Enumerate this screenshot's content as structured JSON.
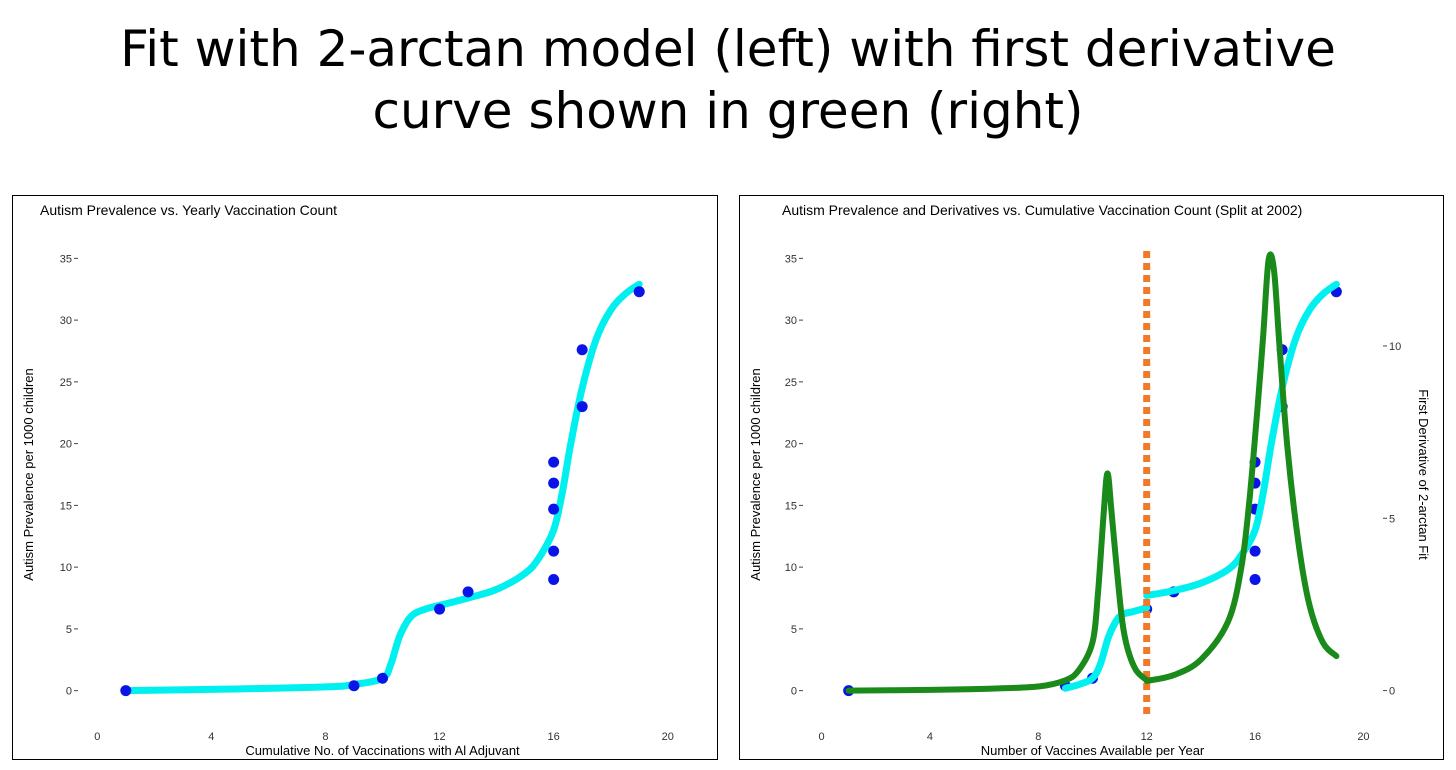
{
  "slide": {
    "title_line1": "Fit with 2-arctan model (left) with first derivative",
    "title_line2": "curve shown in green (right)"
  },
  "colors": {
    "points": "#0a14e6",
    "fit_curve": "#00f0f0",
    "derivative_curve": "#1a8a1a",
    "split_line": "#f07a2a"
  },
  "chart_data": [
    {
      "type": "scatter",
      "title": "Autism Prevalence vs. Yearly Vaccination Count",
      "xlabel": "Cumulative No. of Vaccinations with Al Adjuvant",
      "ylabel": "Autism Prevalence per 1000 children",
      "xlim": [
        -0.5,
        20.5
      ],
      "ylim": [
        -1,
        36
      ],
      "x_ticks": [
        0,
        4,
        8,
        12,
        16,
        20
      ],
      "y_ticks": [
        0,
        5,
        10,
        15,
        20,
        25,
        30,
        35
      ],
      "grid": false,
      "series": [
        {
          "kind": "points",
          "x": [
            1,
            9,
            10,
            12,
            13,
            16,
            16,
            16,
            16,
            16,
            17,
            17,
            19
          ],
          "y": [
            0,
            0.4,
            1.0,
            6.6,
            8.0,
            9.0,
            11.3,
            14.7,
            16.8,
            18.5,
            23.0,
            27.6,
            32.3
          ]
        },
        {
          "kind": "fit",
          "x": [
            1,
            4,
            8,
            9,
            10,
            10.3,
            10.6,
            11.0,
            11.5,
            12,
            13,
            14,
            15,
            15.5,
            16,
            16.3,
            16.6,
            17,
            17.5,
            18,
            18.5,
            19
          ],
          "y": [
            0,
            0.1,
            0.3,
            0.5,
            1.0,
            2.2,
            4.4,
            6.0,
            6.6,
            6.9,
            7.5,
            8.2,
            9.5,
            10.8,
            13.0,
            16.0,
            20.0,
            24.5,
            28.5,
            30.8,
            32.1,
            32.9
          ]
        }
      ]
    },
    {
      "type": "line",
      "title": "Autism Prevalence and Derivatives vs. Cumulative Vaccination Count (Split at 2002)",
      "xlabel": "Number of Vaccines Available per Year",
      "ylabel": "Autism Prevalence per 1000 children",
      "y2label": "First Derivative of 2-arctan Fit",
      "xlim": [
        -0.5,
        20.5
      ],
      "ylim": [
        -1,
        36
      ],
      "y2lim": [
        -0.36,
        12.9
      ],
      "x_ticks": [
        0,
        4,
        8,
        12,
        16,
        20
      ],
      "y_ticks": [
        0,
        5,
        10,
        15,
        20,
        25,
        30,
        35
      ],
      "y2_ticks": [
        0,
        5,
        10
      ],
      "split_x": 12,
      "grid": false,
      "series": [
        {
          "kind": "points",
          "x": [
            1,
            9,
            10,
            12,
            13,
            16,
            16,
            16,
            16,
            16,
            17,
            17,
            19
          ],
          "y": [
            0,
            0.4,
            1.0,
            6.6,
            8.0,
            9.0,
            11.3,
            14.7,
            16.8,
            18.5,
            23.0,
            27.6,
            32.3
          ]
        },
        {
          "kind": "fit",
          "x": [
            9,
            9.5,
            10,
            10.3,
            10.6,
            11,
            11.5,
            12,
            12,
            13,
            14,
            15,
            15.5,
            16,
            16.3,
            16.6,
            17,
            17.5,
            18,
            18.5,
            19
          ],
          "y": [
            0.2,
            0.5,
            1.0,
            2.2,
            4.4,
            6.0,
            6.4,
            6.7,
            7.7,
            8.1,
            8.7,
            9.8,
            11.0,
            13.0,
            16.0,
            20.0,
            24.5,
            28.5,
            30.8,
            32.1,
            32.9
          ]
        },
        {
          "kind": "derivative",
          "x": [
            1,
            4,
            6,
            8,
            9,
            9.5,
            10,
            10.2,
            10.4,
            10.55,
            10.7,
            10.9,
            11.1,
            11.3,
            11.6,
            12,
            12,
            13,
            14,
            15,
            15.5,
            15.8,
            16.1,
            16.3,
            16.5,
            16.7,
            16.9,
            17.2,
            17.6,
            18,
            18.5,
            19
          ],
          "y": [
            0,
            0.02,
            0.05,
            0.12,
            0.3,
            0.6,
            1.4,
            2.8,
            5.0,
            6.3,
            5.2,
            3.5,
            2.0,
            1.2,
            0.6,
            0.3,
            0.28,
            0.45,
            0.9,
            2.0,
            3.6,
            5.6,
            8.3,
            10.3,
            12.5,
            12.2,
            10.0,
            7.0,
            4.3,
            2.5,
            1.4,
            1.0
          ]
        }
      ]
    }
  ]
}
